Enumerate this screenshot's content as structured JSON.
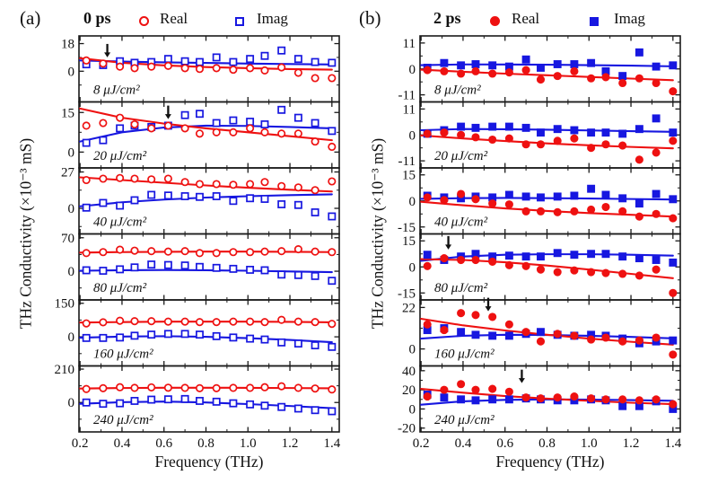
{
  "chart_data": {
    "type": "scatter",
    "x_label": "Frequency (THz)",
    "y_label": "THz Conductivity (×10⁻³ mS)",
    "xlim": [
      0.195,
      1.435
    ],
    "x_ticks": [
      0.2,
      0.4,
      0.6,
      0.8,
      1.0,
      1.2,
      1.4
    ],
    "x": [
      0.23,
      0.31,
      0.39,
      0.46,
      0.54,
      0.62,
      0.7,
      0.77,
      0.85,
      0.93,
      1.01,
      1.08,
      1.16,
      1.24,
      1.32,
      1.4
    ],
    "fit_x": [
      0.2,
      0.4,
      0.6,
      0.8,
      1.0,
      1.2,
      1.4
    ],
    "colors": {
      "real": "#ee1111",
      "imag": "#1717e0",
      "axis": "#1a1a1a",
      "arrow": "#111111"
    },
    "panels": [
      {
        "id": "a",
        "label": "(a)",
        "time_label": "0 ps",
        "marker_style": "open",
        "legend": {
          "real": "Real",
          "imag": "Imag"
        },
        "subplots": [
          {
            "fluence_label": "8 μJ/cm²",
            "yticks": [
              18,
              0
            ],
            "ylim": [
              -20,
              23
            ],
            "arrow": {
              "x": 0.33,
              "y": 9
            },
            "real": [
              7,
              5,
              3,
              2,
              3,
              3.5,
              2,
              1.5,
              2,
              1,
              2,
              0.5,
              2.5,
              -1,
              -4.5,
              -4.5
            ],
            "imag": [
              4.5,
              4,
              6.5,
              5.5,
              6,
              8,
              6.5,
              6,
              9,
              6,
              8,
              10,
              13.5,
              8,
              6,
              5.5
            ],
            "real_fit": [
              8.5,
              5.5,
              3.8,
              2.7,
              2,
              1.4,
              1
            ],
            "imag_fit": [
              7,
              6.3,
              5.8,
              5.4,
              5,
              4.7,
              4.4
            ]
          },
          {
            "fluence_label": "20 μJ/cm²",
            "yticks": [
              15,
              0
            ],
            "ylim": [
              -6,
              19
            ],
            "arrow": {
              "x": 0.62,
              "y": 12.5
            },
            "real": [
              10,
              11,
              13,
              10.5,
              9,
              10,
              9,
              7,
              7.5,
              7.5,
              9,
              7.5,
              7,
              7,
              4,
              2
            ],
            "imag": [
              3.5,
              4.5,
              9,
              10,
              9.5,
              10,
              14,
              14.5,
              11,
              12,
              11.5,
              10.5,
              16,
              13,
              11,
              8
            ],
            "real_fit": [
              16.5,
              13,
              10.8,
              9,
              7.5,
              6,
              4.5
            ],
            "imag_fit": [
              4,
              7.5,
              9.3,
              10,
              9.9,
              9.5,
              9
            ]
          },
          {
            "fluence_label": "40 μJ/cm²",
            "yticks": [
              27,
              0
            ],
            "ylim": [
              -19,
              30
            ],
            "arrow": null,
            "real": [
              21,
              22,
              22.5,
              22,
              21.5,
              22,
              19.5,
              18,
              18,
              17.5,
              18,
              19.5,
              16.5,
              15.5,
              13.5,
              20
            ],
            "imag": [
              0.5,
              4,
              2,
              6,
              10,
              9.5,
              9,
              8.5,
              9,
              5.5,
              7.5,
              7,
              3,
              2.5,
              -3,
              -6
            ],
            "real_fit": [
              23,
              21,
              19,
              17,
              15.3,
              13.8,
              12.5
            ],
            "imag_fit": [
              1.5,
              4.5,
              6.5,
              8,
              9,
              9.8,
              10.4
            ]
          },
          {
            "fluence_label": "80 μJ/cm²",
            "yticks": [
              70,
              0
            ],
            "ylim": [
              -60,
              78
            ],
            "arrow": null,
            "real": [
              38,
              40,
              45,
              43,
              42,
              41,
              42,
              38,
              38,
              40,
              40,
              41,
              42,
              46,
              41,
              40
            ],
            "imag": [
              2,
              1,
              4,
              8,
              14,
              13,
              12,
              9,
              7,
              5,
              3,
              2,
              -7,
              -8,
              -10,
              -20
            ],
            "real_fit": [
              39,
              40,
              40.5,
              41,
              41,
              40.5,
              40
            ],
            "imag_fit": [
              1,
              2,
              2.5,
              2,
              1,
              -0.5,
              -2
            ]
          },
          {
            "fluence_label": "160 μJ/cm²",
            "yticks": [
              150,
              0
            ],
            "ylim": [
              -130,
              165
            ],
            "arrow": null,
            "real": [
              60,
              65,
              72,
              70,
              70,
              68,
              68,
              66,
              66,
              68,
              68,
              66,
              76,
              68,
              66,
              58
            ],
            "imag": [
              -5,
              -5,
              -3,
              5,
              10,
              13,
              13,
              10,
              3,
              -3,
              -8,
              -12,
              -25,
              -30,
              -38,
              -45
            ],
            "real_fit": [
              64,
              66,
              68,
              68,
              68,
              67,
              65
            ],
            "imag_fit": [
              -4,
              1,
              3,
              0,
              -6,
              -14,
              -24
            ]
          },
          {
            "fluence_label": "240 μJ/cm²",
            "yticks": [
              210,
              0
            ],
            "ylim": [
              -185,
              230
            ],
            "arrow": null,
            "real": [
              85,
              90,
              96,
              92,
              95,
              93,
              92,
              90,
              90,
              92,
              92,
              96,
              102,
              92,
              88,
              82
            ],
            "imag": [
              0,
              -8,
              -5,
              10,
              18,
              20,
              22,
              10,
              5,
              -5,
              -12,
              -20,
              -28,
              -38,
              -48,
              -55
            ],
            "real_fit": [
              88,
              91,
              93,
              93,
              92,
              91,
              89
            ],
            "imag_fit": [
              -8,
              2,
              6,
              0,
              -10,
              -22,
              -36
            ]
          }
        ]
      },
      {
        "id": "b",
        "label": "(b)",
        "time_label": "2 ps",
        "marker_style": "filled",
        "legend": {
          "real": "Real",
          "imag": "Imag"
        },
        "subplots": [
          {
            "fluence_label": "8 μJ/cm²",
            "yticks": [
              11,
              0,
              -11
            ],
            "ylim": [
              -14,
              14
            ],
            "arrow": null,
            "real": [
              -0.5,
              -1,
              -2,
              -1,
              -2,
              -1.5,
              -0.5,
              -4.5,
              -3,
              -1,
              -4,
              -3.5,
              -6,
              -4,
              -6,
              -9.5
            ],
            "imag": [
              0.5,
              2.5,
              1.5,
              2,
              1.5,
              1,
              4,
              0.5,
              2,
              2,
              2.5,
              -1,
              -3,
              7,
              1,
              1.5
            ],
            "real_fit": [
              -0.3,
              -1.2,
              -2,
              -2.7,
              -3.4,
              -4.1,
              -4.8
            ],
            "imag_fit": [
              1.6,
              1.9,
              1.9,
              1.8,
              1.6,
              1.4,
              1.1
            ]
          },
          {
            "fluence_label": "20 μJ/cm²",
            "yticks": [
              11,
              0,
              -11
            ],
            "ylim": [
              -14,
              14
            ],
            "arrow": null,
            "real": [
              0.5,
              1,
              0,
              -1,
              -2,
              -1.5,
              -4,
              -4,
              -2.5,
              -1.5,
              -5.5,
              -4,
              -4.5,
              -10.5,
              -7.5,
              -2.5
            ],
            "imag": [
              0.5,
              2,
              3.5,
              3,
              3.5,
              3.5,
              3,
              1,
              2.5,
              2,
              1,
              1,
              0.5,
              2.5,
              7,
              1
            ],
            "real_fit": [
              -0.2,
              -1.5,
              -2.6,
              -3.6,
              -4.4,
              -5.1,
              -5.7
            ],
            "imag_fit": [
              2,
              2.5,
              2.4,
              2.2,
              1.9,
              1.6,
              1.3
            ]
          },
          {
            "fluence_label": "40 μJ/cm²",
            "yticks": [
              15,
              0,
              -15
            ],
            "ylim": [
              -19,
              19
            ],
            "arrow": null,
            "real": [
              2,
              0.5,
              4,
              1,
              -1.5,
              -2,
              -6,
              -6,
              -6.5,
              -6,
              -5,
              -3.5,
              -6,
              -9,
              -7.5,
              -10
            ],
            "imag": [
              3,
              2,
              1.5,
              2.5,
              2,
              3.5,
              2.5,
              2,
              2.5,
              3,
              7,
              3.5,
              1.5,
              -1.5,
              4,
              1
            ],
            "real_fit": [
              -0.5,
              -2.5,
              -4.3,
              -5.8,
              -7,
              -8,
              -9
            ],
            "imag_fit": [
              1.2,
              1.6,
              1.7,
              1.6,
              1.4,
              1.1,
              0.8
            ]
          },
          {
            "fluence_label": "80 μJ/cm²",
            "yticks": [
              15,
              0,
              -15
            ],
            "ylim": [
              -19,
              19
            ],
            "arrow": {
              "x": 0.33,
              "y": 10
            },
            "real": [
              0.5,
              5,
              4,
              4,
              3,
              1,
              0.5,
              -1.5,
              -3,
              -2,
              -3,
              -3.5,
              -4,
              -5,
              -1.5,
              -15
            ],
            "imag": [
              7,
              4,
              6,
              7.5,
              6,
              6.5,
              6,
              6,
              8,
              7,
              7.5,
              7.5,
              6,
              5,
              4,
              2.5
            ],
            "real_fit": [
              4.5,
              4,
              2.7,
              0.8,
              -1.5,
              -4,
              -6.5
            ],
            "imag_fit": [
              3.5,
              6,
              7,
              7.3,
              7.3,
              7,
              6.5
            ]
          },
          {
            "fluence_label": "160 μJ/cm²",
            "yticks": [
              22,
              0
            ],
            "ylim": [
              -9,
              26
            ],
            "arrow": {
              "x": 0.52,
              "y": 20
            },
            "real": [
              13,
              10,
              19,
              18,
              17,
              13,
              9,
              4,
              8,
              7,
              5,
              6,
              4,
              4.5,
              6,
              -3
            ],
            "imag": [
              10,
              11,
              9,
              7.5,
              7,
              7,
              8,
              9,
              7.5,
              7,
              7.5,
              7,
              5.5,
              3,
              4,
              4.5
            ],
            "real_fit": [
              16,
              12.5,
              9.8,
              7.5,
              5.5,
              3.8,
              2.3
            ],
            "imag_fit": [
              5.5,
              7,
              7.5,
              7.4,
              7,
              6.4,
              5.6
            ]
          },
          {
            "fluence_label": "240 μJ/cm²",
            "yticks": [
              40,
              20,
              0,
              -20
            ],
            "ylim": [
              -24,
              45
            ],
            "arrow": {
              "x": 0.68,
              "y": 27
            },
            "real": [
              13,
              20,
              26,
              20,
              21,
              18,
              12,
              11,
              12,
              13,
              11,
              10,
              10,
              9,
              10,
              5
            ],
            "imag": [
              15,
              12,
              10,
              9,
              10,
              10,
              11,
              10,
              9,
              9,
              10,
              9,
              3,
              3,
              8,
              0
            ],
            "real_fit": [
              21,
              17,
              13.5,
              10.8,
              8.5,
              6.5,
              5
            ],
            "imag_fit": [
              4.5,
              8,
              9.5,
              10,
              9.8,
              9.3,
              8.6
            ]
          }
        ]
      }
    ]
  }
}
